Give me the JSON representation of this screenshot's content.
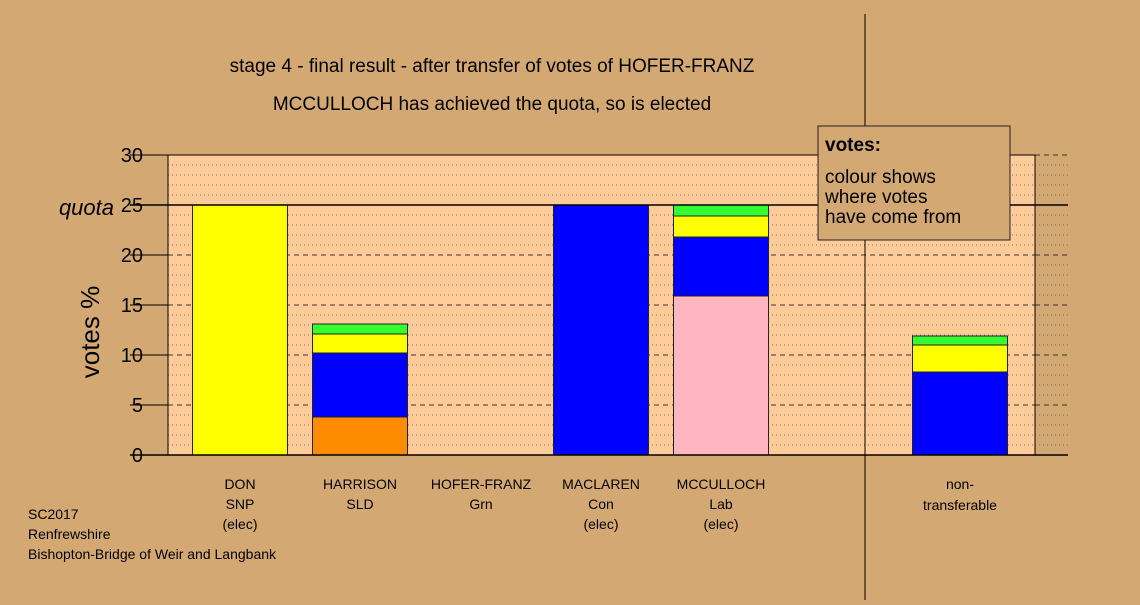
{
  "chart_data": {
    "type": "bar",
    "stacked": true,
    "title": "stage 4 - final result - after transfer of votes of HOFER-FRANZ",
    "subtitle": "MCCULLOCH has achieved the quota, so is elected",
    "ylabel": "votes %",
    "ylim": [
      0,
      30
    ],
    "yticks": [
      "0",
      "5",
      "10",
      "15",
      "20",
      "25",
      "30"
    ],
    "quota": {
      "label": "quota",
      "value": 25
    },
    "grid": true,
    "legend": {
      "placement": "top-right",
      "title": "votes:",
      "lines": [
        "colour shows",
        "where votes",
        "have come from"
      ]
    },
    "categories": [
      {
        "lines": [
          "DON",
          "SNP",
          "(elec)"
        ]
      },
      {
        "lines": [
          "HARRISON",
          "SLD"
        ]
      },
      {
        "lines": [
          "HOFER-FRANZ",
          "Grn"
        ]
      },
      {
        "lines": [
          "MACLAREN",
          "Con",
          "(elec)"
        ]
      },
      {
        "lines": [
          "MCCULLOCH",
          "Lab",
          "(elec)"
        ]
      },
      {
        "lines": [
          "non-",
          "transferable"
        ],
        "separate_panel": true
      }
    ],
    "bars": [
      {
        "segments": [
          {
            "value": 25.0,
            "color": "#ffff00"
          }
        ]
      },
      {
        "segments": [
          {
            "value": 3.8,
            "color": "#ff8c00"
          },
          {
            "value": 6.4,
            "color": "#0000ff"
          },
          {
            "value": 1.9,
            "color": "#ffff00"
          },
          {
            "value": 1.0,
            "color": "#33ff33"
          }
        ]
      },
      {
        "segments": []
      },
      {
        "segments": [
          {
            "value": 25.0,
            "color": "#0000ff"
          }
        ]
      },
      {
        "segments": [
          {
            "value": 15.9,
            "color": "#ffb6c1"
          },
          {
            "value": 5.9,
            "color": "#0000ff"
          },
          {
            "value": 2.1,
            "color": "#ffff00"
          },
          {
            "value": 1.1,
            "color": "#33ff33"
          }
        ]
      },
      {
        "segments": [
          {
            "value": 8.3,
            "color": "#0000ff"
          },
          {
            "value": 2.7,
            "color": "#ffff00"
          },
          {
            "value": 0.9,
            "color": "#33ff33"
          }
        ]
      }
    ],
    "colors": {
      "background": "#d4a872",
      "plot_area": "#ffcc99",
      "legend_bg": "#d4a872"
    }
  },
  "footer": {
    "lines": [
      "SC2017",
      "Renfrewshire",
      "Bishopton-Bridge of Weir and Langbank"
    ]
  }
}
